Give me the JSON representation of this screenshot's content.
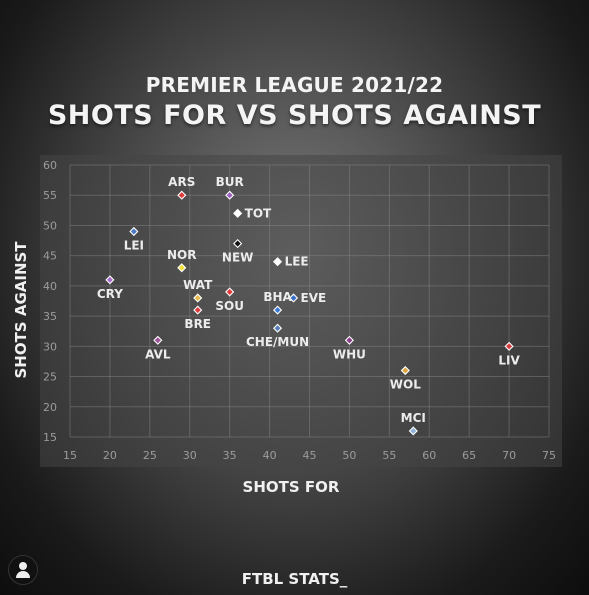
{
  "header": {
    "line1": "PREMIER LEAGUE 2021/22",
    "line2": "SHOTS FOR VS SHOTS AGAINST"
  },
  "footer": {
    "brand": "FTBL STATS_"
  },
  "chart_data": {
    "type": "scatter",
    "title": "SHOTS FOR VS SHOTS AGAINST",
    "subtitle": "PREMIER LEAGUE 2021/22",
    "xlabel": "SHOTS FOR",
    "ylabel": "SHOTS AGAINST",
    "xlim": [
      15,
      75
    ],
    "ylim": [
      15,
      60
    ],
    "xticks": [
      15,
      20,
      25,
      30,
      35,
      40,
      45,
      50,
      55,
      60,
      65,
      70,
      75
    ],
    "yticks": [
      15,
      20,
      25,
      30,
      35,
      40,
      45,
      50,
      55,
      60
    ],
    "grid": true,
    "points": [
      {
        "label": "ARS",
        "x": 29,
        "y": 55,
        "color": "#e03b3b",
        "label_pos": "above"
      },
      {
        "label": "BUR",
        "x": 35,
        "y": 55,
        "color": "#9b5fc0",
        "label_pos": "above"
      },
      {
        "label": "TOT",
        "x": 36,
        "y": 52,
        "color": "#ffffff",
        "label_pos": "right"
      },
      {
        "label": "LEI",
        "x": 23,
        "y": 49,
        "color": "#4a78c2",
        "label_pos": "below"
      },
      {
        "label": "NEW",
        "x": 36,
        "y": 47,
        "color": "#111111",
        "label_pos": "below"
      },
      {
        "label": "LEE",
        "x": 41,
        "y": 44,
        "color": "#ffffff",
        "label_pos": "right"
      },
      {
        "label": "NOR",
        "x": 29,
        "y": 43,
        "color": "#f2e03a",
        "label_pos": "above"
      },
      {
        "label": "CRY",
        "x": 20,
        "y": 41,
        "color": "#a86cc9",
        "label_pos": "below"
      },
      {
        "label": "WAT",
        "x": 31,
        "y": 38,
        "color": "#e8b84a",
        "label_pos": "above"
      },
      {
        "label": "SOU",
        "x": 35,
        "y": 39,
        "color": "#e03b3b",
        "label_pos": "below"
      },
      {
        "label": "BHA",
        "x": 41,
        "y": 36,
        "color": "#3a7bd5",
        "label_pos": "above"
      },
      {
        "label": "EVE",
        "x": 43,
        "y": 38,
        "color": "#3a6fc9",
        "label_pos": "right"
      },
      {
        "label": "BRE",
        "x": 31,
        "y": 36,
        "color": "#e03b3b",
        "label_pos": "below"
      },
      {
        "label": "CHE/MUN",
        "x": 41,
        "y": 33,
        "color": "#5a7fb8",
        "label_pos": "below"
      },
      {
        "label": "AVL",
        "x": 26,
        "y": 31,
        "color": "#a0519a",
        "label_pos": "below"
      },
      {
        "label": "WHU",
        "x": 50,
        "y": 31,
        "color": "#8a3e8a",
        "label_pos": "below"
      },
      {
        "label": "LIV",
        "x": 70,
        "y": 30,
        "color": "#d63b3b",
        "label_pos": "below"
      },
      {
        "label": "WOL",
        "x": 57,
        "y": 26,
        "color": "#e0a640",
        "label_pos": "below"
      },
      {
        "label": "MCI",
        "x": 58,
        "y": 16,
        "color": "#8fb3d9",
        "label_pos": "above"
      }
    ]
  }
}
